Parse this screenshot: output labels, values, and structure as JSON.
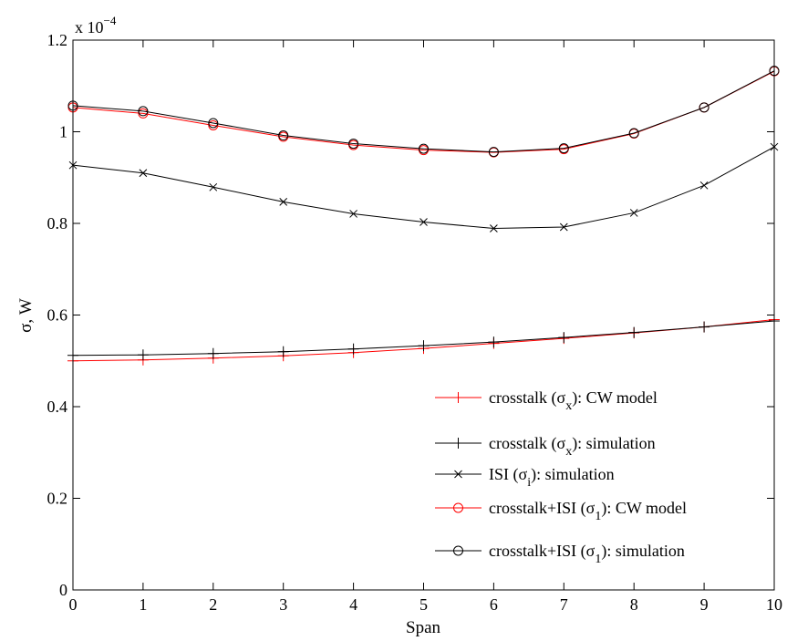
{
  "chart_data": {
    "type": "line",
    "xlabel": "Span",
    "ylabel": "σ, W",
    "y_multiplier": {
      "base": "x 10",
      "exponent": "−4"
    },
    "xlim": [
      0,
      10
    ],
    "ylim": [
      0,
      1.2
    ],
    "x_ticks": [
      "0",
      "1",
      "2",
      "3",
      "4",
      "5",
      "6",
      "7",
      "8",
      "9",
      "10"
    ],
    "y_ticks": [
      "0",
      "0.2",
      "0.4",
      "0.6",
      "0.8",
      "1",
      "1.2"
    ],
    "grid": false,
    "legend_position": "lower-right",
    "x": [
      0,
      1,
      2,
      3,
      4,
      5,
      6,
      7,
      8,
      9,
      10
    ],
    "series": [
      {
        "id": "xt_cw",
        "legend": {
          "pre": "crosstalk (σ",
          "sub": "x",
          "post": "): CW model"
        },
        "color": "#ff0000",
        "marker": "plus",
        "values": [
          0.5,
          0.502,
          0.506,
          0.511,
          0.518,
          0.527,
          0.538,
          0.549,
          0.561,
          0.574,
          0.59
        ]
      },
      {
        "id": "xt_sim",
        "legend": {
          "pre": "crosstalk (σ",
          "sub": "x",
          "post": "): simulation"
        },
        "color": "#000000",
        "marker": "plus",
        "values": [
          0.512,
          0.513,
          0.516,
          0.52,
          0.526,
          0.533,
          0.541,
          0.551,
          0.562,
          0.574,
          0.587
        ]
      },
      {
        "id": "isi_sim",
        "legend": {
          "pre": "ISI (σ",
          "sub": "i",
          "post": "): simulation"
        },
        "color": "#000000",
        "marker": "x",
        "values": [
          0.927,
          0.91,
          0.879,
          0.847,
          0.821,
          0.803,
          0.789,
          0.792,
          0.823,
          0.883,
          0.967
        ]
      },
      {
        "id": "tot_cw",
        "legend": {
          "pre": "crosstalk+ISI (σ",
          "sub": "1",
          "post": "): CW model"
        },
        "color": "#ff0000",
        "marker": "circle",
        "values": [
          1.053,
          1.04,
          1.014,
          0.989,
          0.971,
          0.96,
          0.955,
          0.962,
          0.996,
          1.053,
          1.132
        ]
      },
      {
        "id": "tot_sim",
        "legend": {
          "pre": "crosstalk+ISI (σ",
          "sub": "1",
          "post": "): simulation"
        },
        "color": "#000000",
        "marker": "circle",
        "values": [
          1.057,
          1.045,
          1.019,
          0.992,
          0.974,
          0.963,
          0.956,
          0.964,
          0.997,
          1.053,
          1.133
        ]
      }
    ]
  }
}
